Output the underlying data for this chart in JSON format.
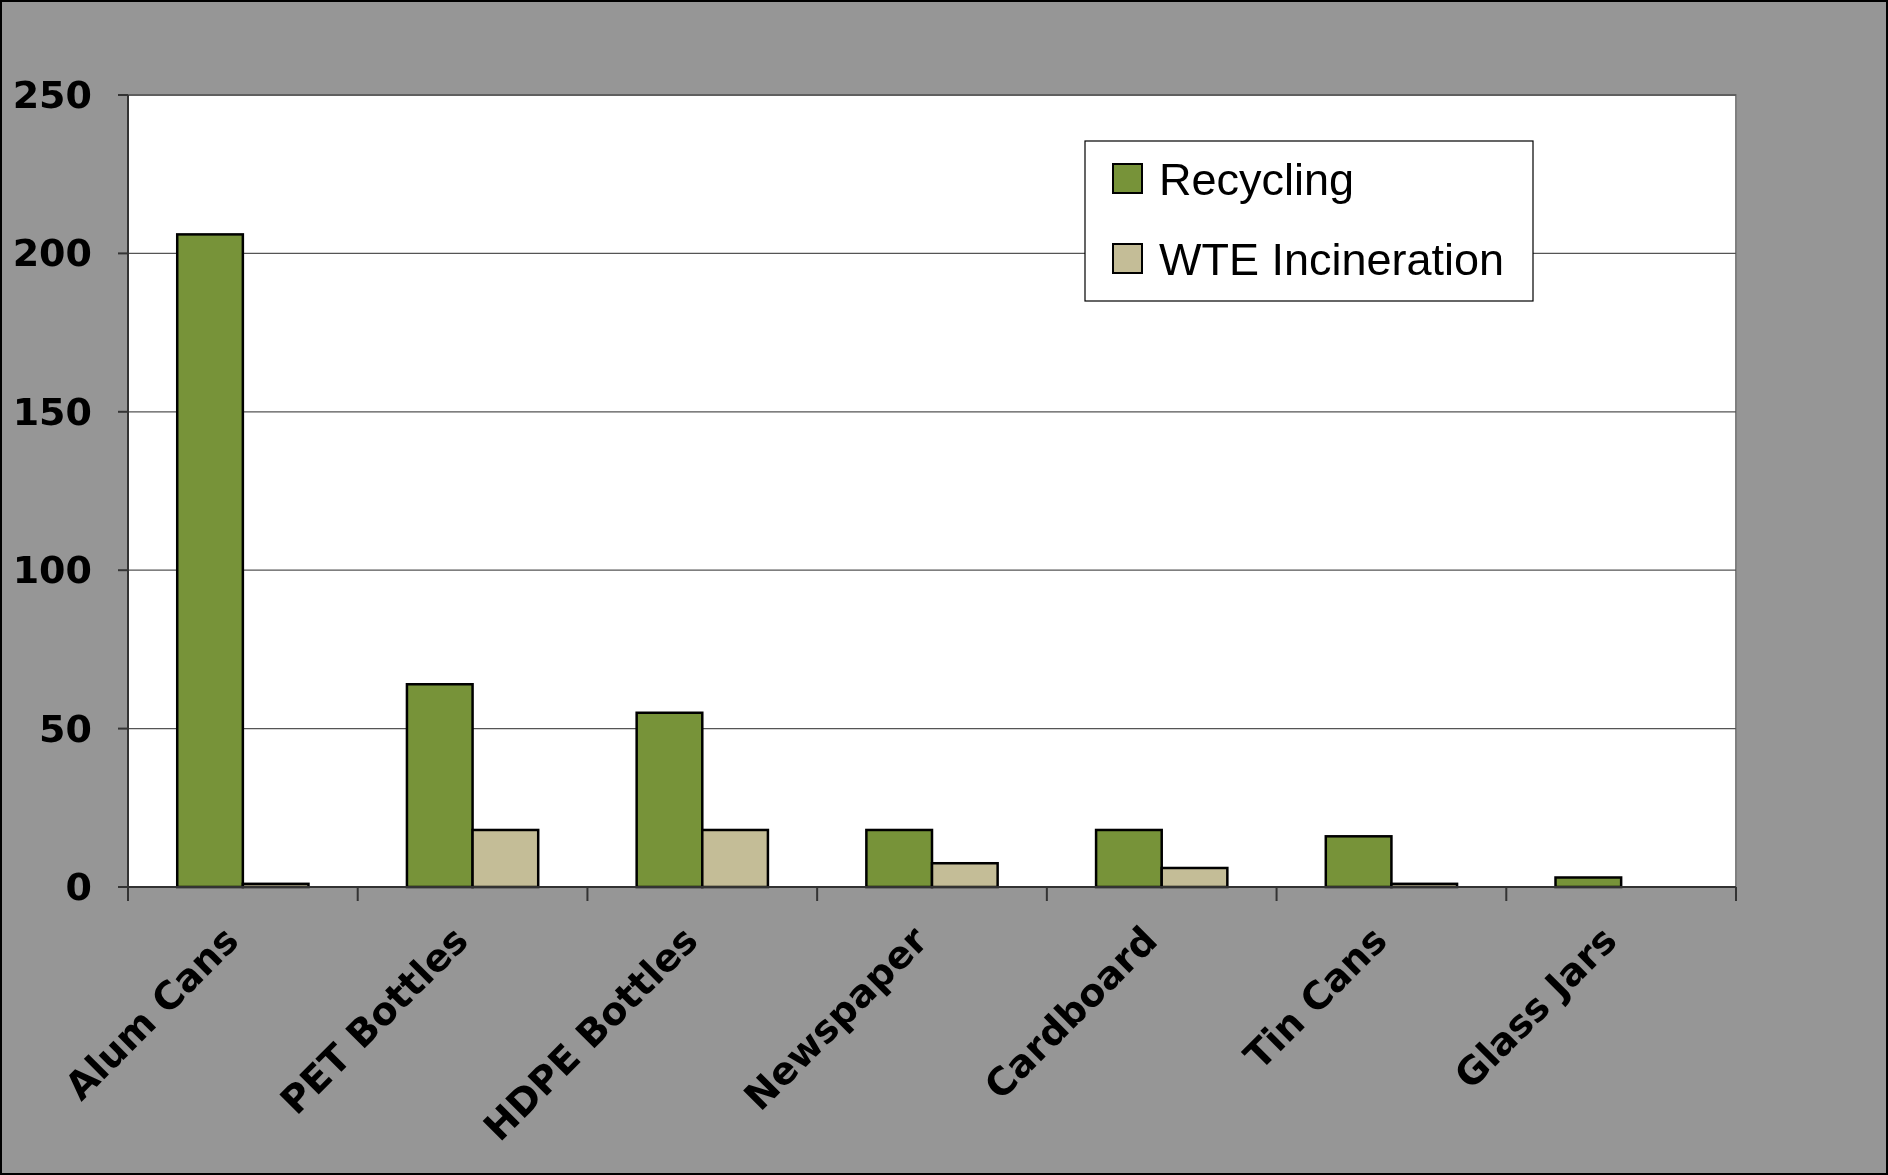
{
  "chart_data": {
    "type": "bar",
    "categories": [
      "Alum Cans",
      "PET Bottles",
      "HDPE Bottles",
      "Newspaper",
      "Cardboard",
      "Tin Cans",
      "Glass Jars"
    ],
    "series": [
      {
        "name": "Recycling",
        "color": "#779339",
        "values": [
          206,
          64,
          55,
          18,
          18,
          16,
          3
        ]
      },
      {
        "name": "WTE Incineration",
        "color": "#c4bd97",
        "values": [
          1,
          18,
          18,
          7.5,
          6,
          1,
          null
        ]
      }
    ],
    "ylim": [
      0,
      250
    ],
    "yticks": [
      0,
      50,
      100,
      150,
      200,
      250
    ],
    "grid": "y",
    "legend": "top right"
  }
}
